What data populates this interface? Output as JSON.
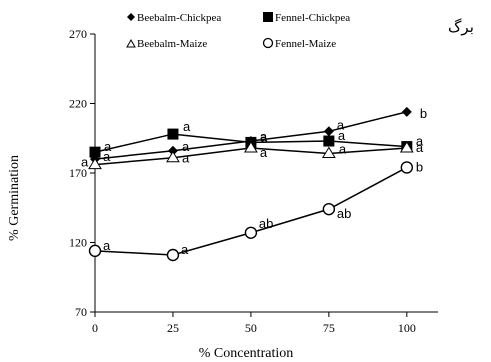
{
  "corner_text": "برگ",
  "chart_data": {
    "type": "line",
    "xlabel": "% Concentration",
    "ylabel": "% Germination",
    "x": [
      0,
      25,
      50,
      75,
      100
    ],
    "xticks": [
      0,
      25,
      50,
      75,
      100
    ],
    "yticks": [
      70,
      120,
      170,
      220,
      270
    ],
    "ylim": [
      70,
      270
    ],
    "grid": false,
    "legend_position": "top",
    "series": [
      {
        "name": "Beebalm-Chickpea",
        "marker": "diamond",
        "values": [
          180,
          186,
          193,
          200,
          214
        ],
        "labels": [
          "a",
          "a",
          "a",
          "a",
          "b"
        ]
      },
      {
        "name": "Fennel-Chickpea",
        "marker": "square",
        "values": [
          185,
          198,
          192,
          193,
          189
        ],
        "labels": [
          "a",
          "a",
          "a",
          "a",
          "a"
        ]
      },
      {
        "name": "Beebalm-Maize",
        "marker": "triangle",
        "values": [
          176,
          181,
          188,
          184,
          188
        ],
        "labels": [
          "a",
          "a",
          "a",
          "a",
          "a"
        ]
      },
      {
        "name": "Fennel-Maize",
        "marker": "circle",
        "values": [
          114,
          111,
          127,
          144,
          174
        ],
        "labels": [
          "a",
          "a",
          "ab",
          "ab",
          "b"
        ]
      }
    ]
  }
}
